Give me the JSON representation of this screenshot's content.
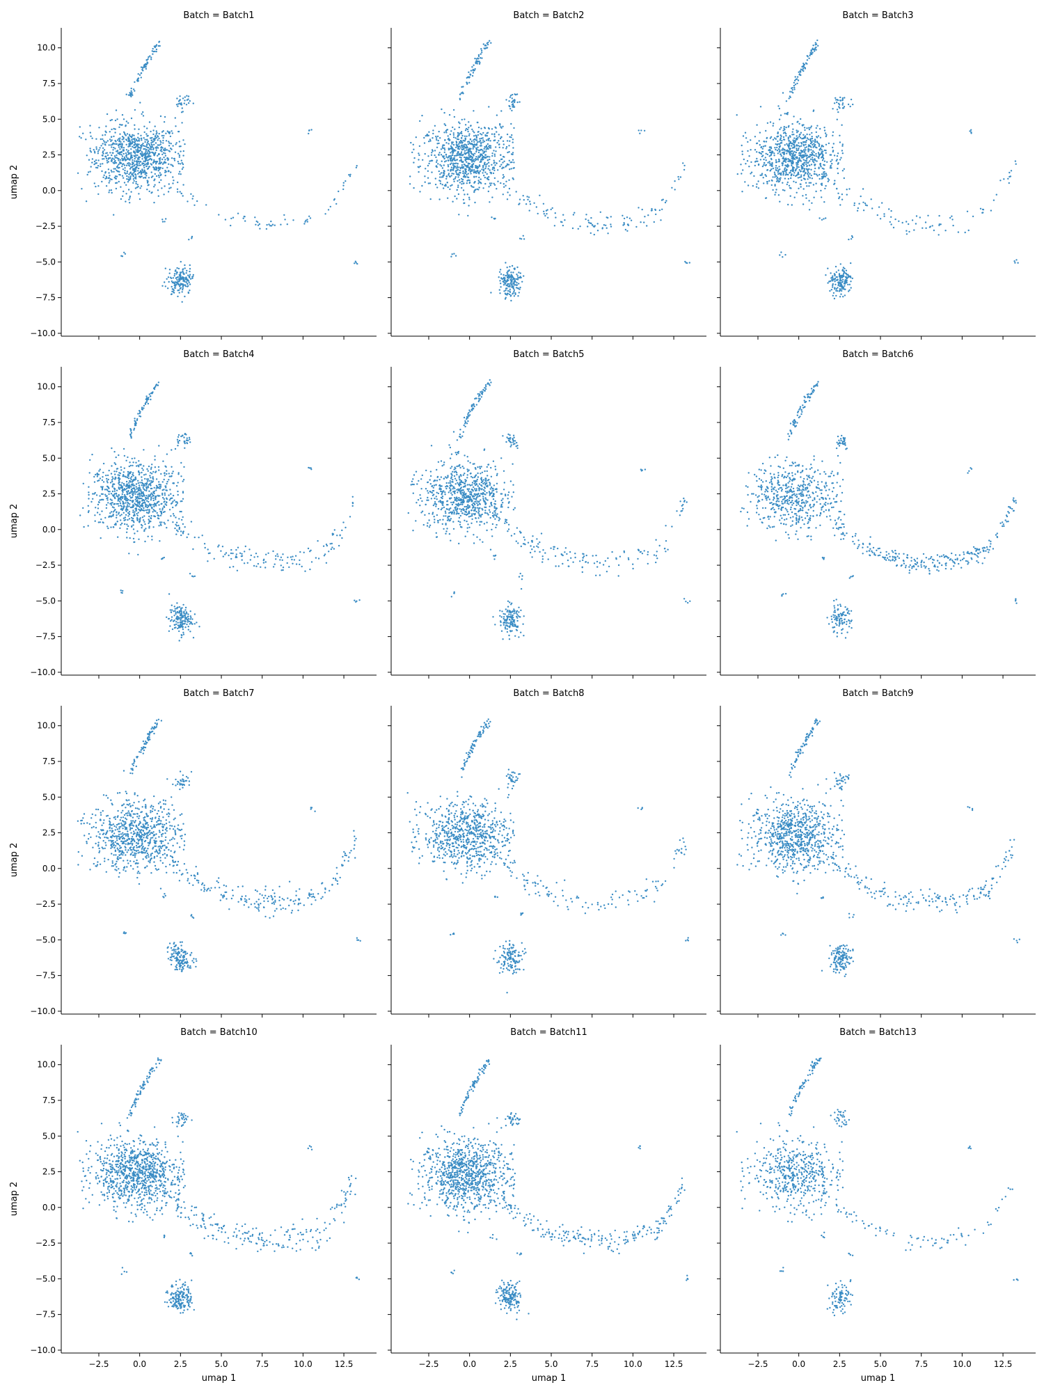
{
  "figure": {
    "xlabel": "umap 1",
    "ylabel": "umap 2",
    "point_color": "#3a8cc4"
  },
  "chart_data": {
    "type": "scatter",
    "facet_variable": "Batch",
    "xlabel": "umap 1",
    "ylabel": "umap 2",
    "xlim": [
      -4.8,
      14.5
    ],
    "ylim": [
      -10.2,
      11.4
    ],
    "xticks": [
      -2.5,
      0.0,
      2.5,
      5.0,
      7.5,
      10.0,
      12.5
    ],
    "xtick_labels": [
      "−2.5",
      "0.0",
      "2.5",
      "5.0",
      "7.5",
      "10.0",
      "12.5"
    ],
    "yticks": [
      10.0,
      7.5,
      5.0,
      2.5,
      0.0,
      -2.5,
      -5.0,
      -7.5,
      -10.0
    ],
    "ytick_labels": [
      "10.0",
      "7.5",
      "5.0",
      "2.5",
      "0.0",
      "−2.5",
      "−5.0",
      "−7.5",
      "−10.0"
    ],
    "grid": false,
    "legend": "none",
    "color": "#3a8cc4",
    "panels": [
      {
        "title": "Batch = Batch1",
        "density": 1.0,
        "tail": 0.25,
        "tail_spread": 0.15
      },
      {
        "title": "Batch = Batch2",
        "density": 1.0,
        "tail": 0.45,
        "tail_spread": 0.45
      },
      {
        "title": "Batch = Batch3",
        "density": 0.95,
        "tail": 0.35,
        "tail_spread": 0.6
      },
      {
        "title": "Batch = Batch4",
        "density": 1.0,
        "tail": 0.55,
        "tail_spread": 0.6
      },
      {
        "title": "Batch = Batch5",
        "density": 0.85,
        "tail": 0.55,
        "tail_spread": 0.6
      },
      {
        "title": "Batch = Batch6",
        "density": 0.6,
        "tail": 1.0,
        "tail_spread": 0.35
      },
      {
        "title": "Batch = Batch7",
        "density": 0.85,
        "tail": 0.8,
        "tail_spread": 0.6
      },
      {
        "title": "Batch = Batch8",
        "density": 0.8,
        "tail": 0.45,
        "tail_spread": 0.55
      },
      {
        "title": "Batch = Batch9",
        "density": 0.85,
        "tail": 0.7,
        "tail_spread": 0.5
      },
      {
        "title": "Batch = Batch10",
        "density": 1.0,
        "tail": 0.8,
        "tail_spread": 0.7
      },
      {
        "title": "Batch = Batch11",
        "density": 1.0,
        "tail": 0.8,
        "tail_spread": 0.45
      },
      {
        "title": "Batch = Batch13",
        "density": 0.55,
        "tail": 0.3,
        "tail_spread": 0.3
      }
    ],
    "clusters": [
      {
        "name": "main-blob",
        "x": -0.2,
        "y": 2.2,
        "sx": 1.5,
        "sy": 1.3
      },
      {
        "name": "lower-cluster",
        "x": 2.5,
        "y": -6.3,
        "sx": 0.4,
        "sy": 0.6
      },
      {
        "name": "upper-arc",
        "from": [
          -0.5,
          6.5
        ],
        "to": [
          1.2,
          10.4
        ]
      },
      {
        "name": "small-cluster",
        "x": 2.6,
        "y": 6.2,
        "sx": 0.3,
        "sy": 0.3
      },
      {
        "name": "right-arc",
        "from": [
          2.0,
          0.5
        ],
        "via": [
          9.0,
          -2.3
        ],
        "to": [
          13.3,
          0.6
        ]
      }
    ]
  }
}
